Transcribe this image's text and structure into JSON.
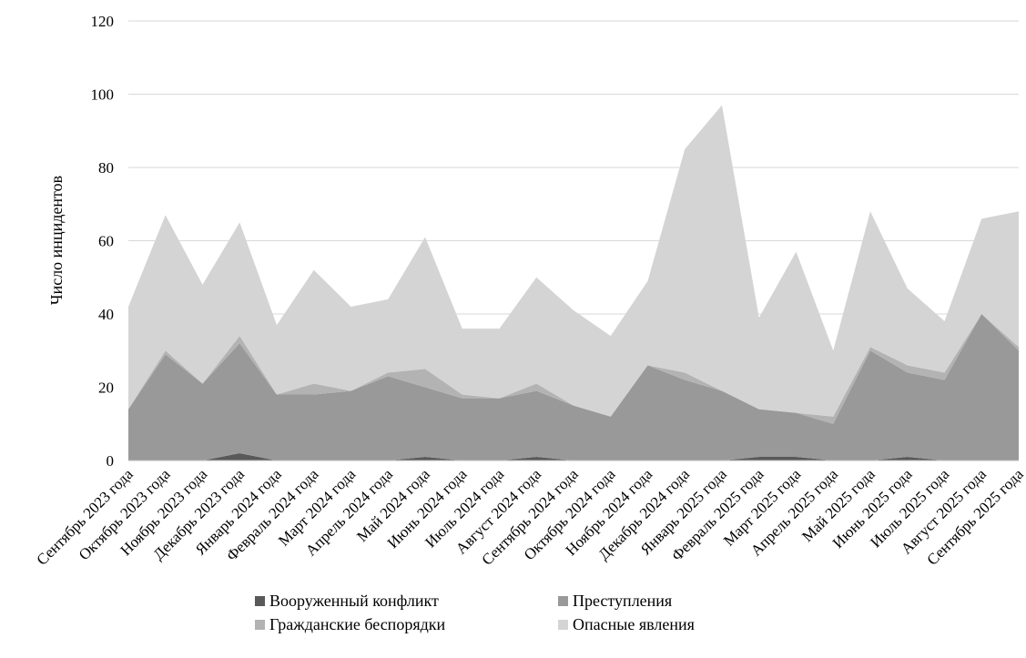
{
  "chart_data": {
    "type": "area",
    "stacked": true,
    "title": "",
    "xlabel": "",
    "ylabel": "Число инцидентов",
    "ylim": [
      0,
      120
    ],
    "yticks": [
      0,
      20,
      40,
      60,
      80,
      100,
      120
    ],
    "grid": true,
    "legend_position": "bottom",
    "categories": [
      "Сентябрь 2023 года",
      "Октябрь 2023 года",
      "Ноябрь 2023 года",
      "Декабрь 2023 года",
      "Январь 2024 года",
      "Февраль 2024 года",
      "Март 2024 года",
      "Апрель 2024 года",
      "Май 2024 года",
      "Июнь 2024 года",
      "Июль 2024 года",
      "Август 2024 года",
      "Сентябрь 2024 года",
      "Октябрь 2024 года",
      "Ноябрь 2024 года",
      "Декабрь 2024 года",
      "Январь 2025 года",
      "Февраль 2025 года",
      "Март 2025 года",
      "Апрель 2025 года",
      "Май 2025 года",
      "Июнь 2025 года",
      "Июль 2025 года",
      "Август 2025 года",
      "Сентябрь 2025 года"
    ],
    "series": [
      {
        "name": "Вооруженный конфликт",
        "color": "#595959",
        "values": [
          0,
          0,
          0,
          2,
          0,
          0,
          0,
          0,
          1,
          0,
          0,
          1,
          0,
          0,
          0,
          0,
          0,
          1,
          1,
          0,
          0,
          1,
          0,
          0,
          0
        ]
      },
      {
        "name": "Преступления",
        "color": "#999999",
        "values": [
          14,
          29,
          21,
          30,
          18,
          18,
          19,
          23,
          19,
          17,
          17,
          18,
          15,
          12,
          26,
          22,
          19,
          13,
          12,
          10,
          30,
          23,
          22,
          40,
          30
        ]
      },
      {
        "name": "Гражданские беспорядки",
        "color": "#b3b3b3",
        "values": [
          0,
          1,
          0,
          2,
          0,
          3,
          0,
          1,
          5,
          1,
          0,
          2,
          0,
          0,
          0,
          2,
          0,
          0,
          0,
          2,
          1,
          2,
          2,
          0,
          1
        ]
      },
      {
        "name": "Опасные явления",
        "color": "#d4d4d4",
        "values": [
          28,
          37,
          27,
          31,
          19,
          31,
          23,
          20,
          36,
          18,
          19,
          29,
          26,
          22,
          23,
          61,
          78,
          25,
          44,
          18,
          37,
          21,
          14,
          26,
          37
        ]
      }
    ]
  }
}
